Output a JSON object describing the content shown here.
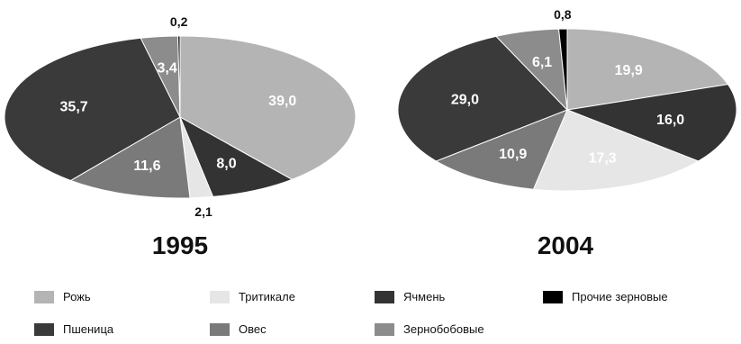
{
  "chart_data": [
    {
      "type": "pie",
      "title": "1995",
      "slices": [
        {
          "label": "Рожь",
          "value": 39.0,
          "value_label": "39,0"
        },
        {
          "label": "Ячмень",
          "value": 8.0,
          "value_label": "8,0"
        },
        {
          "label": "Тритикале",
          "value": 2.1,
          "value_label": "2,1"
        },
        {
          "label": "Овес",
          "value": 11.6,
          "value_label": "11,6"
        },
        {
          "label": "Пшеница",
          "value": 35.7,
          "value_label": "35,7"
        },
        {
          "label": "Зернобобовые",
          "value": 3.4,
          "value_label": "3,4"
        },
        {
          "label": "Прочие зерновые",
          "value": 0.2,
          "value_label": "0,2"
        }
      ]
    },
    {
      "type": "pie",
      "title": "2004",
      "slices": [
        {
          "label": "Рожь",
          "value": 19.9,
          "value_label": "19,9"
        },
        {
          "label": "Ячмень",
          "value": 16.0,
          "value_label": "16,0"
        },
        {
          "label": "Тритикале",
          "value": 17.3,
          "value_label": "17,3"
        },
        {
          "label": "Овес",
          "value": 10.9,
          "value_label": "10,9"
        },
        {
          "label": "Пшеница",
          "value": 29.0,
          "value_label": "29,0"
        },
        {
          "label": "Зернобобовые",
          "value": 6.1,
          "value_label": "6,1"
        },
        {
          "label": "Прочие зерновые",
          "value": 0.8,
          "value_label": "0,8"
        }
      ]
    }
  ],
  "legend": [
    {
      "label": "Рожь",
      "color": "#b4b4b4"
    },
    {
      "label": "Тритикале",
      "color": "#e6e6e6"
    },
    {
      "label": "Ячмень",
      "color": "#333333"
    },
    {
      "label": "Прочие зерновые",
      "color": "#000000"
    },
    {
      "label": "Пшеница",
      "color": "#3a3a3a"
    },
    {
      "label": "Овес",
      "color": "#7a7a7a"
    },
    {
      "label": "Зернобобовые",
      "color": "#8c8c8c"
    }
  ]
}
